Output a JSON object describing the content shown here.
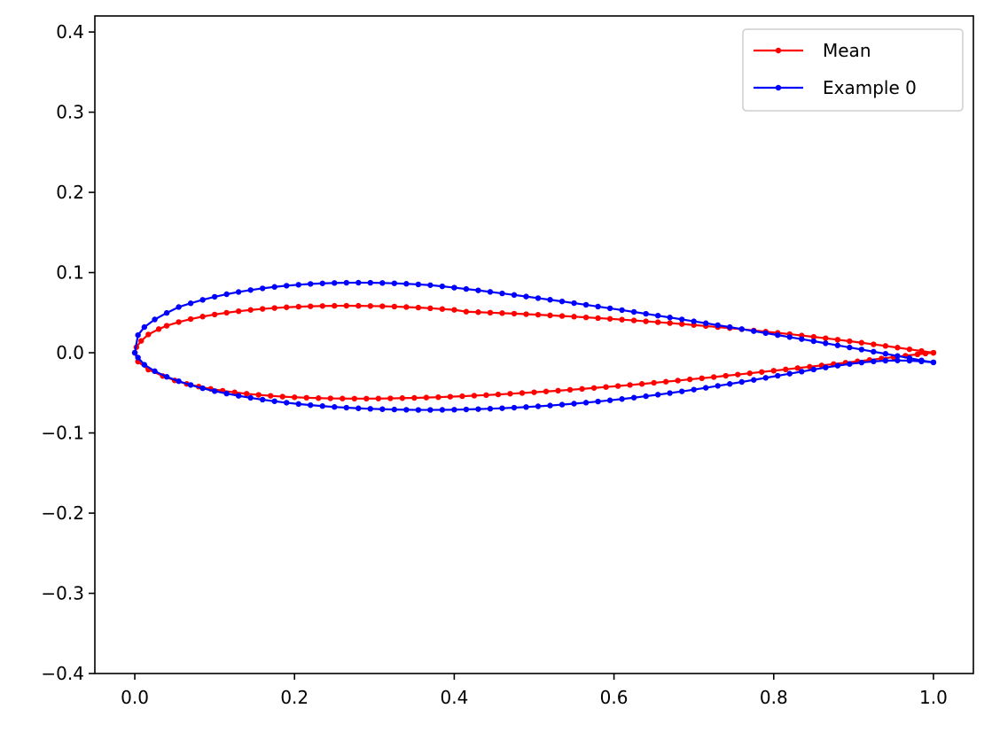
{
  "chart_data": {
    "type": "line",
    "title": "",
    "xlabel": "",
    "ylabel": "",
    "xlim": [
      -0.05,
      1.05
    ],
    "ylim": [
      -0.4,
      0.42
    ],
    "grid": false,
    "legend_position": "top-right",
    "x_ticks": [
      {
        "value": 0.0,
        "label": "0.0"
      },
      {
        "value": 0.2,
        "label": "0.2"
      },
      {
        "value": 0.4,
        "label": "0.4"
      },
      {
        "value": 0.6,
        "label": "0.6"
      },
      {
        "value": 0.8,
        "label": "0.8"
      },
      {
        "value": 1.0,
        "label": "1.0"
      }
    ],
    "y_ticks": [
      {
        "value": 0.4,
        "label": "0.4"
      },
      {
        "value": 0.3,
        "label": "0.3"
      },
      {
        "value": 0.2,
        "label": "0.2"
      },
      {
        "value": 0.1,
        "label": "0.1"
      },
      {
        "value": 0.0,
        "label": "0.0"
      },
      {
        "value": -0.1,
        "label": "−0.1"
      },
      {
        "value": -0.2,
        "label": "−0.2"
      },
      {
        "value": -0.3,
        "label": "−0.3"
      },
      {
        "value": -0.4,
        "label": "−0.4"
      }
    ],
    "series": [
      {
        "name": "Mean",
        "color": "#ff0000",
        "upper_x": [
          1.0,
          0.985,
          0.97,
          0.955,
          0.94,
          0.925,
          0.91,
          0.895,
          0.88,
          0.865,
          0.85,
          0.835,
          0.82,
          0.805,
          0.79,
          0.775,
          0.76,
          0.745,
          0.73,
          0.715,
          0.7,
          0.685,
          0.67,
          0.655,
          0.64,
          0.625,
          0.61,
          0.595,
          0.58,
          0.565,
          0.55,
          0.535,
          0.52,
          0.505,
          0.49,
          0.475,
          0.46,
          0.445,
          0.43,
          0.415,
          0.4,
          0.385,
          0.37,
          0.355,
          0.34,
          0.325,
          0.31,
          0.295,
          0.28,
          0.265,
          0.25,
          0.235,
          0.22,
          0.205,
          0.19,
          0.175,
          0.16,
          0.145,
          0.13,
          0.115,
          0.1,
          0.085,
          0.07,
          0.055,
          0.04,
          0.03,
          0.017,
          0.008,
          0.002,
          0.0
        ],
        "upper_y": [
          0.0,
          0.0022,
          0.0043,
          0.0064,
          0.0085,
          0.0105,
          0.0125,
          0.0144,
          0.0163,
          0.0181,
          0.0198,
          0.0215,
          0.0232,
          0.0248,
          0.0263,
          0.0278,
          0.0293,
          0.0307,
          0.032,
          0.0333,
          0.0346,
          0.0358,
          0.037,
          0.0381,
          0.0392,
          0.0403,
          0.0413,
          0.0423,
          0.0432,
          0.0441,
          0.045,
          0.0458,
          0.0466,
          0.0474,
          0.0481,
          0.0488,
          0.0494,
          0.05,
          0.0506,
          0.0512,
          0.0535,
          0.0545,
          0.0555,
          0.0563,
          0.057,
          0.0576,
          0.058,
          0.0583,
          0.0585,
          0.0586,
          0.0585,
          0.0583,
          0.0579,
          0.0574,
          0.0567,
          0.0558,
          0.0547,
          0.0534,
          0.0518,
          0.0499,
          0.0477,
          0.0451,
          0.042,
          0.0383,
          0.0337,
          0.0295,
          0.0228,
          0.0148,
          0.007,
          0.0
        ],
        "lower_x": [
          0.0,
          0.004,
          0.017,
          0.035,
          0.05,
          0.065,
          0.08,
          0.095,
          0.11,
          0.125,
          0.14,
          0.155,
          0.17,
          0.185,
          0.2,
          0.215,
          0.23,
          0.245,
          0.26,
          0.275,
          0.29,
          0.305,
          0.32,
          0.335,
          0.35,
          0.365,
          0.38,
          0.395,
          0.41,
          0.425,
          0.44,
          0.455,
          0.47,
          0.485,
          0.5,
          0.515,
          0.53,
          0.545,
          0.56,
          0.575,
          0.59,
          0.605,
          0.62,
          0.635,
          0.65,
          0.665,
          0.68,
          0.695,
          0.71,
          0.725,
          0.74,
          0.755,
          0.77,
          0.785,
          0.8,
          0.815,
          0.83,
          0.845,
          0.86,
          0.875,
          0.89,
          0.905,
          0.92,
          0.935,
          0.95,
          0.965,
          0.98,
          0.99,
          1.0
        ],
        "lower_y": [
          0.0,
          -0.011,
          -0.021,
          -0.029,
          -0.0345,
          -0.0388,
          -0.0422,
          -0.045,
          -0.0474,
          -0.0494,
          -0.0511,
          -0.0525,
          -0.0537,
          -0.0547,
          -0.0555,
          -0.0561,
          -0.0566,
          -0.0569,
          -0.0571,
          -0.0572,
          -0.0572,
          -0.0571,
          -0.0569,
          -0.0566,
          -0.0563,
          -0.0559,
          -0.0554,
          -0.0548,
          -0.0542,
          -0.0535,
          -0.0528,
          -0.052,
          -0.0511,
          -0.0502,
          -0.0493,
          -0.0483,
          -0.0473,
          -0.0462,
          -0.0451,
          -0.0439,
          -0.0427,
          -0.0415,
          -0.0402,
          -0.0389,
          -0.0375,
          -0.0361,
          -0.0347,
          -0.0332,
          -0.0318,
          -0.0303,
          -0.0287,
          -0.0272,
          -0.0256,
          -0.024,
          -0.0224,
          -0.0208,
          -0.0191,
          -0.0175,
          -0.0158,
          -0.0141,
          -0.0124,
          -0.0107,
          -0.009,
          -0.0072,
          -0.0055,
          -0.0037,
          -0.002,
          -0.001,
          0.0
        ]
      },
      {
        "name": "Example 0",
        "color": "#0000ff",
        "upper_x": [
          1.0,
          0.985,
          0.97,
          0.955,
          0.94,
          0.925,
          0.91,
          0.895,
          0.88,
          0.865,
          0.85,
          0.835,
          0.82,
          0.805,
          0.79,
          0.775,
          0.76,
          0.745,
          0.73,
          0.715,
          0.7,
          0.685,
          0.67,
          0.655,
          0.64,
          0.625,
          0.61,
          0.595,
          0.58,
          0.565,
          0.55,
          0.535,
          0.52,
          0.505,
          0.49,
          0.475,
          0.46,
          0.445,
          0.43,
          0.415,
          0.4,
          0.385,
          0.37,
          0.355,
          0.34,
          0.325,
          0.31,
          0.295,
          0.28,
          0.265,
          0.25,
          0.235,
          0.22,
          0.205,
          0.19,
          0.175,
          0.16,
          0.145,
          0.13,
          0.115,
          0.1,
          0.085,
          0.07,
          0.055,
          0.04,
          0.025,
          0.012,
          0.004,
          0.0
        ],
        "upper_y": [
          -0.012,
          -0.0095,
          -0.0067,
          -0.004,
          -0.0013,
          0.0013,
          0.004,
          0.0066,
          0.0092,
          0.0118,
          0.0144,
          0.017,
          0.0195,
          0.022,
          0.0245,
          0.027,
          0.0295,
          0.032,
          0.0344,
          0.0368,
          0.0392,
          0.0416,
          0.044,
          0.0463,
          0.0486,
          0.0509,
          0.0532,
          0.0554,
          0.0576,
          0.0598,
          0.0619,
          0.064,
          0.0661,
          0.0681,
          0.0701,
          0.0721,
          0.074,
          0.0759,
          0.0778,
          0.0795,
          0.0812,
          0.0828,
          0.0843,
          0.0852,
          0.086,
          0.0866,
          0.087,
          0.0873,
          0.0874,
          0.0873,
          0.087,
          0.0865,
          0.0858,
          0.0848,
          0.0836,
          0.0821,
          0.0803,
          0.0782,
          0.0758,
          0.073,
          0.0698,
          0.066,
          0.0617,
          0.057,
          0.0497,
          0.0415,
          0.032,
          0.022,
          0.0
        ],
        "lower_x": [
          0.0,
          0.004,
          0.012,
          0.025,
          0.04,
          0.055,
          0.07,
          0.085,
          0.1,
          0.115,
          0.13,
          0.145,
          0.16,
          0.175,
          0.19,
          0.205,
          0.22,
          0.235,
          0.25,
          0.265,
          0.28,
          0.295,
          0.31,
          0.325,
          0.34,
          0.355,
          0.37,
          0.385,
          0.4,
          0.415,
          0.43,
          0.445,
          0.46,
          0.475,
          0.49,
          0.505,
          0.52,
          0.535,
          0.55,
          0.565,
          0.58,
          0.595,
          0.61,
          0.625,
          0.64,
          0.655,
          0.67,
          0.685,
          0.7,
          0.715,
          0.73,
          0.745,
          0.76,
          0.775,
          0.79,
          0.805,
          0.82,
          0.835,
          0.85,
          0.865,
          0.88,
          0.895,
          0.91,
          0.925,
          0.94,
          0.955,
          0.97,
          0.985,
          1.0
        ],
        "lower_y": [
          0.0,
          -0.006,
          -0.015,
          -0.023,
          -0.03,
          -0.0355,
          -0.0402,
          -0.0443,
          -0.0478,
          -0.0509,
          -0.0537,
          -0.0562,
          -0.0585,
          -0.0605,
          -0.0623,
          -0.0639,
          -0.0653,
          -0.0665,
          -0.0676,
          -0.0685,
          -0.0693,
          -0.0699,
          -0.0704,
          -0.0708,
          -0.0711,
          -0.0713,
          -0.0713,
          -0.0712,
          -0.071,
          -0.0707,
          -0.0703,
          -0.0698,
          -0.0692,
          -0.0685,
          -0.0677,
          -0.0668,
          -0.0658,
          -0.0647,
          -0.0635,
          -0.0622,
          -0.0608,
          -0.0593,
          -0.0577,
          -0.056,
          -0.0542,
          -0.0523,
          -0.0503,
          -0.0482,
          -0.046,
          -0.0437,
          -0.0413,
          -0.0389,
          -0.0364,
          -0.0339,
          -0.0313,
          -0.0287,
          -0.0261,
          -0.0235,
          -0.0209,
          -0.0184,
          -0.0161,
          -0.014,
          -0.0122,
          -0.0108,
          -0.0099,
          -0.0096,
          -0.0099,
          -0.0108,
          -0.012
        ]
      }
    ]
  }
}
